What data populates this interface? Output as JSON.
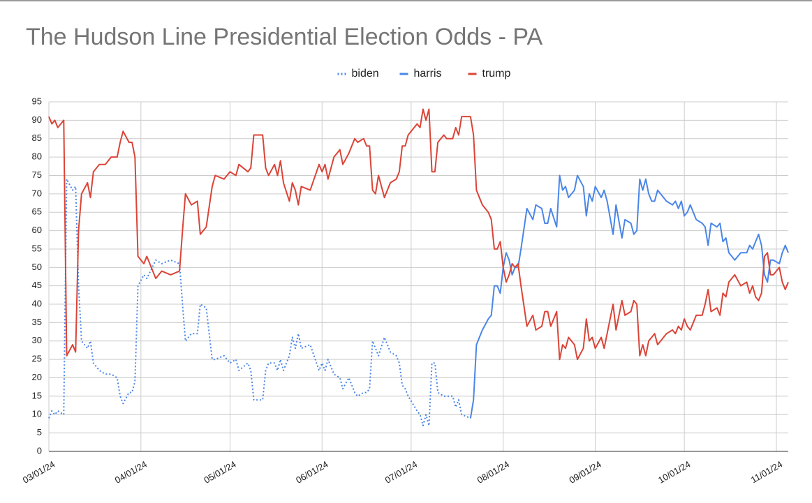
{
  "chart_data": {
    "type": "line",
    "title": "The Hudson Line Presidential Election Odds - PA",
    "x": [
      "03/01/24",
      "03/02/24",
      "03/03/24",
      "03/04/24",
      "03/06/24",
      "03/07/24",
      "03/09/24",
      "03/10/24",
      "03/11/24",
      "03/12/24",
      "03/14/24",
      "03/15/24",
      "03/16/24",
      "03/18/24",
      "03/20/24",
      "03/22/24",
      "03/24/24",
      "03/25/24",
      "03/26/24",
      "03/28/24",
      "03/29/24",
      "03/30/24",
      "03/31/24",
      "04/02/24",
      "04/03/24",
      "04/06/24",
      "04/08/24",
      "04/11/24",
      "04/14/24",
      "04/15/24",
      "04/16/24",
      "04/18/24",
      "04/20/24",
      "04/21/24",
      "04/23/24",
      "04/25/24",
      "04/26/24",
      "04/29/24",
      "05/01/24",
      "05/03/24",
      "05/04/24",
      "05/07/24",
      "05/08/24",
      "05/09/24",
      "05/12/24",
      "05/13/24",
      "05/14/24",
      "05/16/24",
      "05/17/24",
      "05/18/24",
      "05/19/24",
      "05/21/24",
      "05/22/24",
      "05/23/24",
      "05/24/24",
      "05/25/24",
      "05/28/24",
      "05/31/24",
      "06/01/24",
      "06/02/24",
      "06/03/24",
      "06/05/24",
      "06/07/24",
      "06/08/24",
      "06/10/24",
      "06/12/24",
      "06/13/24",
      "06/15/24",
      "06/16/24",
      "06/17/24",
      "06/18/24",
      "06/19/24",
      "06/20/24",
      "06/22/24",
      "06/24/24",
      "06/26/24",
      "06/27/24",
      "06/28/24",
      "06/29/24",
      "06/30/24",
      "07/03/24",
      "07/04/24",
      "07/05/24",
      "07/06/24",
      "07/07/24",
      "07/08/24",
      "07/09/24",
      "07/10/24",
      "07/12/24",
      "07/13/24",
      "07/15/24",
      "07/16/24",
      "07/17/24",
      "07/18/24",
      "07/21/24",
      "07/22/24",
      "07/23/24",
      "07/25/24",
      "07/27/24",
      "07/28/24",
      "07/29/24",
      "07/30/24",
      "07/31/24",
      "08/01/24",
      "08/02/24",
      "08/03/24",
      "08/04/24",
      "08/05/24",
      "08/06/24",
      "08/07/24",
      "08/09/24",
      "08/11/24",
      "08/12/24",
      "08/14/24",
      "08/15/24",
      "08/16/24",
      "08/17/24",
      "08/19/24",
      "08/20/24",
      "08/21/24",
      "08/22/24",
      "08/23/24",
      "08/25/24",
      "08/26/24",
      "08/28/24",
      "08/29/24",
      "08/30/24",
      "08/31/24",
      "09/01/24",
      "09/03/24",
      "09/04/24",
      "09/05/24",
      "09/07/24",
      "09/08/24",
      "09/10/24",
      "09/11/24",
      "09/13/24",
      "09/14/24",
      "09/15/24",
      "09/16/24",
      "09/17/24",
      "09/18/24",
      "09/19/24",
      "09/20/24",
      "09/21/24",
      "09/22/24",
      "09/25/24",
      "09/27/24",
      "09/28/24",
      "09/29/24",
      "09/30/24",
      "10/01/24",
      "10/02/24",
      "10/03/24",
      "10/05/24",
      "10/07/24",
      "10/08/24",
      "10/09/24",
      "10/10/24",
      "10/12/24",
      "10/13/24",
      "10/14/24",
      "10/15/24",
      "10/16/24",
      "10/18/24",
      "10/20/24",
      "10/22/24",
      "10/23/24",
      "10/24/24",
      "10/25/24",
      "10/26/24",
      "10/27/24",
      "10/28/24",
      "10/29/24",
      "10/30/24",
      "10/31/24",
      "11/02/24",
      "11/03/24",
      "11/04/24",
      "11/05/24"
    ],
    "series": [
      {
        "name": "biden",
        "color": "#4a86e8",
        "line_style": "dotted",
        "values": [
          9,
          11,
          10,
          11,
          10,
          74,
          71,
          72,
          45,
          30,
          28,
          30,
          24,
          22,
          21,
          21,
          20,
          15,
          13,
          16,
          16,
          19,
          45,
          48,
          47,
          52,
          51,
          52,
          51,
          40,
          30,
          32,
          32,
          40,
          39,
          25,
          25,
          26,
          24,
          25,
          22,
          24,
          22,
          14,
          14,
          22,
          24,
          24,
          22,
          25,
          22,
          26,
          31,
          28,
          32,
          28,
          29,
          22,
          24,
          22,
          25,
          21,
          20,
          17,
          20,
          16,
          15,
          16,
          16,
          17,
          30,
          28,
          26,
          31,
          27,
          26,
          24,
          18,
          17,
          15,
          11,
          10,
          7,
          10,
          7,
          24,
          24,
          16,
          15,
          15,
          15,
          12,
          14,
          10,
          9,
          null,
          null,
          null,
          null,
          null,
          null,
          null,
          null,
          null,
          null,
          null,
          null,
          null,
          null,
          null,
          null,
          null,
          null,
          null,
          null,
          null,
          null,
          null,
          null,
          null,
          null,
          null,
          null,
          null,
          null,
          null,
          null,
          null,
          null,
          null,
          null,
          null,
          null,
          null,
          null,
          null,
          null,
          null,
          null,
          null,
          null,
          null,
          null,
          null,
          null,
          null,
          null,
          null,
          null,
          null,
          null,
          null,
          null,
          null,
          null,
          null,
          null,
          null,
          null,
          null,
          null,
          null,
          null,
          null,
          null,
          null,
          null,
          null,
          null,
          null,
          null,
          null,
          null,
          null,
          null,
          null,
          null,
          null,
          null,
          null
        ]
      },
      {
        "name": "harris",
        "color": "#4a86e8",
        "line_style": "solid",
        "values": [
          null,
          null,
          null,
          null,
          null,
          null,
          null,
          null,
          null,
          null,
          null,
          null,
          null,
          null,
          null,
          null,
          null,
          null,
          null,
          null,
          null,
          null,
          null,
          null,
          null,
          null,
          null,
          null,
          null,
          null,
          null,
          null,
          null,
          null,
          null,
          null,
          null,
          null,
          null,
          null,
          null,
          null,
          null,
          null,
          null,
          null,
          null,
          null,
          null,
          null,
          null,
          null,
          null,
          null,
          null,
          null,
          null,
          null,
          null,
          null,
          null,
          null,
          null,
          null,
          null,
          null,
          null,
          null,
          null,
          null,
          null,
          null,
          null,
          null,
          null,
          null,
          null,
          null,
          null,
          null,
          null,
          null,
          null,
          null,
          null,
          null,
          null,
          null,
          null,
          null,
          null,
          null,
          null,
          null,
          9,
          14,
          29,
          33,
          36,
          37,
          45,
          45,
          43,
          50,
          54,
          52,
          48,
          50,
          50,
          55,
          66,
          63,
          67,
          66,
          62,
          62,
          66,
          61,
          75,
          71,
          72,
          69,
          71,
          75,
          72,
          64,
          70,
          68,
          72,
          69,
          71,
          68,
          59,
          67,
          58,
          63,
          62,
          59,
          60,
          74,
          71,
          74,
          70,
          68,
          68,
          71,
          68,
          67,
          68,
          66,
          68,
          64,
          65,
          67,
          63,
          62,
          61,
          56,
          62,
          61,
          62,
          57,
          58,
          54,
          52,
          54,
          54,
          56,
          55,
          57,
          59,
          56,
          48,
          46,
          52,
          52,
          51,
          54,
          56,
          54
        ]
      },
      {
        "name": "trump",
        "color": "#db4437",
        "line_style": "solid",
        "values": [
          91,
          89,
          90,
          88,
          90,
          26,
          29,
          27,
          60,
          70,
          73,
          69,
          76,
          78,
          78,
          80,
          80,
          84,
          87,
          84,
          84,
          80,
          53,
          51,
          53,
          47,
          49,
          48,
          49,
          60,
          70,
          67,
          68,
          59,
          61,
          72,
          75,
          74,
          76,
          75,
          78,
          76,
          77,
          86,
          86,
          77,
          75,
          78,
          75,
          79,
          73,
          68,
          73,
          71,
          67,
          72,
          71,
          78,
          76,
          78,
          74,
          80,
          82,
          78,
          81,
          85,
          84,
          85,
          83,
          83,
          71,
          70,
          75,
          69,
          73,
          74,
          76,
          83,
          83,
          86,
          89,
          88,
          93,
          90,
          93,
          76,
          76,
          84,
          86,
          85,
          85,
          88,
          86,
          91,
          91,
          86,
          71,
          67,
          65,
          63,
          55,
          55,
          57,
          50,
          46,
          48,
          51,
          50,
          51,
          45,
          34,
          37,
          33,
          34,
          38,
          38,
          34,
          38,
          25,
          29,
          28,
          31,
          29,
          25,
          28,
          36,
          30,
          31,
          28,
          31,
          28,
          32,
          40,
          33,
          41,
          37,
          38,
          41,
          40,
          26,
          29,
          26,
          30,
          31,
          32,
          29,
          32,
          33,
          32,
          34,
          33,
          36,
          34,
          33,
          37,
          37,
          40,
          44,
          38,
          39,
          37,
          43,
          42,
          46,
          48,
          45,
          46,
          43,
          45,
          42,
          41,
          43,
          53,
          54,
          48,
          48,
          50,
          46,
          44,
          46
        ]
      }
    ],
    "xlim": [
      "03/01/24",
      "11/05/24"
    ],
    "xticks": [
      "03/01/24",
      "04/01/24",
      "05/01/24",
      "06/01/24",
      "07/01/24",
      "08/01/24",
      "09/01/24",
      "10/01/24",
      "11/01/24"
    ],
    "ylim": [
      0,
      95
    ],
    "yticks": [
      0,
      5,
      10,
      15,
      20,
      25,
      30,
      35,
      40,
      45,
      50,
      55,
      60,
      65,
      70,
      75,
      80,
      85,
      90,
      95
    ],
    "grid": true,
    "legend": "top"
  }
}
